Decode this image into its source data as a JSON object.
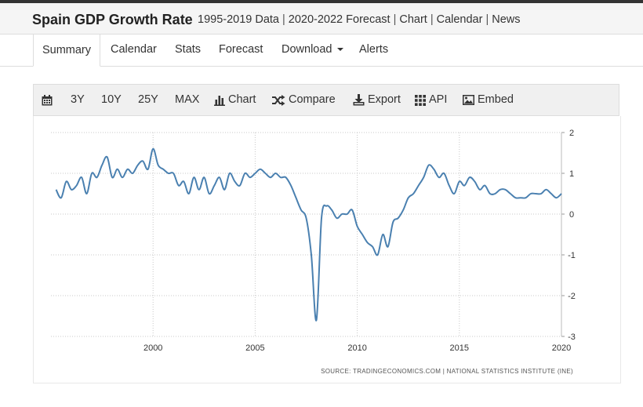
{
  "header": {
    "title": "Spain GDP Growth Rate",
    "links": [
      "1995-2019 Data",
      "2020-2022 Forecast",
      "Chart",
      "Calendar",
      "News"
    ]
  },
  "tabs": [
    "Summary",
    "Calendar",
    "Stats",
    "Forecast",
    "Download",
    "Alerts"
  ],
  "toolbar": {
    "ranges": [
      "3Y",
      "10Y",
      "25Y",
      "MAX"
    ],
    "chart": "Chart",
    "compare": "Compare",
    "export": "Export",
    "api": "API",
    "embed": "Embed"
  },
  "chart_data": {
    "type": "line",
    "x_ticks": [
      "2000",
      "2005",
      "2010",
      "2015",
      "2020"
    ],
    "y_ticks": [
      "2",
      "1",
      "0",
      "-1",
      "-2",
      "-3"
    ],
    "ylim": [
      -3,
      2
    ],
    "xlim": [
      1995.0,
      2020.0
    ],
    "grid": true,
    "color": "#4a80b0",
    "source": "SOURCE: TRADINGECONOMICS.COM | NATIONAL STATISTICS INSTITUTE (INE)",
    "series": [
      {
        "x": [
          1995.25,
          1995.5,
          1995.75,
          1996.0,
          1996.25,
          1996.5,
          1996.75,
          1997.0,
          1997.25,
          1997.5,
          1997.75,
          1998.0,
          1998.25,
          1998.5,
          1998.75,
          1999.0,
          1999.25,
          1999.5,
          1999.75,
          2000.0,
          2000.25,
          2000.5,
          2000.75,
          2001.0,
          2001.25,
          2001.5,
          2001.75,
          2002.0,
          2002.25,
          2002.5,
          2002.75,
          2003.0,
          2003.25,
          2003.5,
          2003.75,
          2004.0,
          2004.25,
          2004.5,
          2004.75,
          2005.0,
          2005.25,
          2005.5,
          2005.75,
          2006.0,
          2006.25,
          2006.5,
          2006.75,
          2007.0,
          2007.25,
          2007.5,
          2007.75,
          2008.0,
          2008.25,
          2008.5,
          2008.75,
          2009.0,
          2009.25,
          2009.5,
          2009.75,
          2010.0,
          2010.25,
          2010.5,
          2010.75,
          2011.0,
          2011.25,
          2011.5,
          2011.75,
          2012.0,
          2012.25,
          2012.5,
          2012.75,
          2013.0,
          2013.25,
          2013.5,
          2013.75,
          2014.0,
          2014.25,
          2014.5,
          2014.75,
          2015.0,
          2015.25,
          2015.5,
          2015.75,
          2016.0,
          2016.25,
          2016.5,
          2016.75,
          2017.0,
          2017.25,
          2017.5,
          2017.75,
          2018.0,
          2018.25,
          2018.5,
          2018.75,
          2019.0,
          2019.25,
          2019.5,
          2019.75,
          2020.0
        ],
        "values": [
          0.6,
          0.4,
          0.8,
          0.6,
          0.7,
          0.9,
          0.5,
          1.0,
          0.9,
          1.2,
          1.4,
          0.9,
          1.1,
          0.9,
          1.1,
          1.0,
          1.2,
          1.3,
          1.1,
          1.6,
          1.2,
          1.1,
          1.0,
          1.0,
          0.7,
          0.8,
          0.5,
          0.9,
          0.6,
          0.9,
          0.5,
          0.7,
          0.9,
          0.6,
          1.0,
          0.8,
          0.7,
          1.0,
          0.9,
          1.0,
          1.1,
          1.0,
          0.9,
          1.0,
          0.9,
          0.9,
          0.7,
          0.4,
          0.1,
          -0.1,
          -1.0,
          -2.6,
          -0.1,
          0.2,
          0.1,
          -0.1,
          0.0,
          0.0,
          0.1,
          -0.3,
          -0.5,
          -0.7,
          -0.8,
          -1.0,
          -0.5,
          -0.8,
          -0.2,
          -0.1,
          0.1,
          0.4,
          0.5,
          0.7,
          0.9,
          1.2,
          1.1,
          0.9,
          1.0,
          0.7,
          0.5,
          0.8,
          0.7,
          0.9,
          0.8,
          0.6,
          0.7,
          0.5,
          0.5,
          0.6,
          0.6,
          0.5,
          0.4,
          0.4,
          0.4,
          0.5,
          0.5,
          0.5,
          0.6,
          0.5,
          0.4,
          0.5
        ]
      }
    ]
  }
}
